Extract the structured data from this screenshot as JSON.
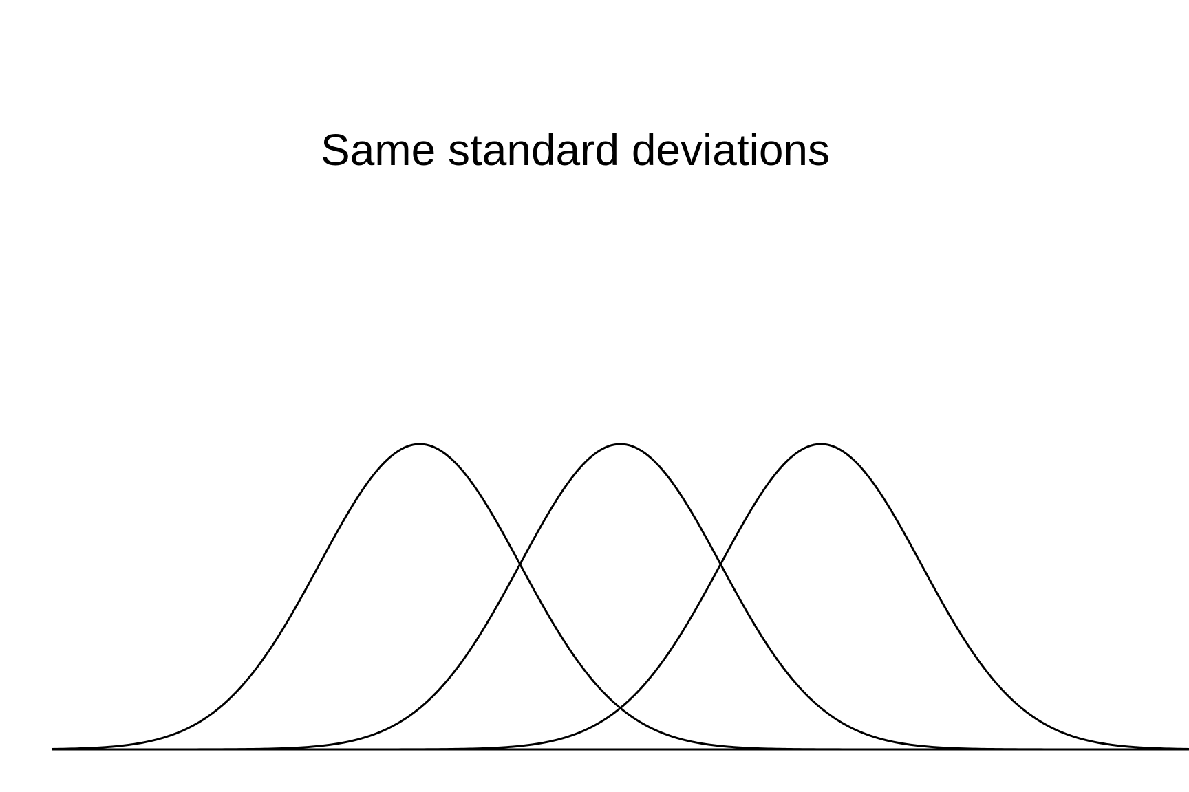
{
  "chart_data": {
    "type": "line",
    "title": "Same standard deviations",
    "xlabel": "",
    "ylabel": "",
    "axes_visible": false,
    "grid": false,
    "baseline": true,
    "xlim": [
      -4.67,
      6.67
    ],
    "series": [
      {
        "distribution": "normal",
        "mean": -1,
        "sd": 1
      },
      {
        "distribution": "normal",
        "mean": 1,
        "sd": 1
      },
      {
        "distribution": "normal",
        "mean": 3,
        "sd": 1
      }
    ],
    "line_color": "#000000"
  }
}
